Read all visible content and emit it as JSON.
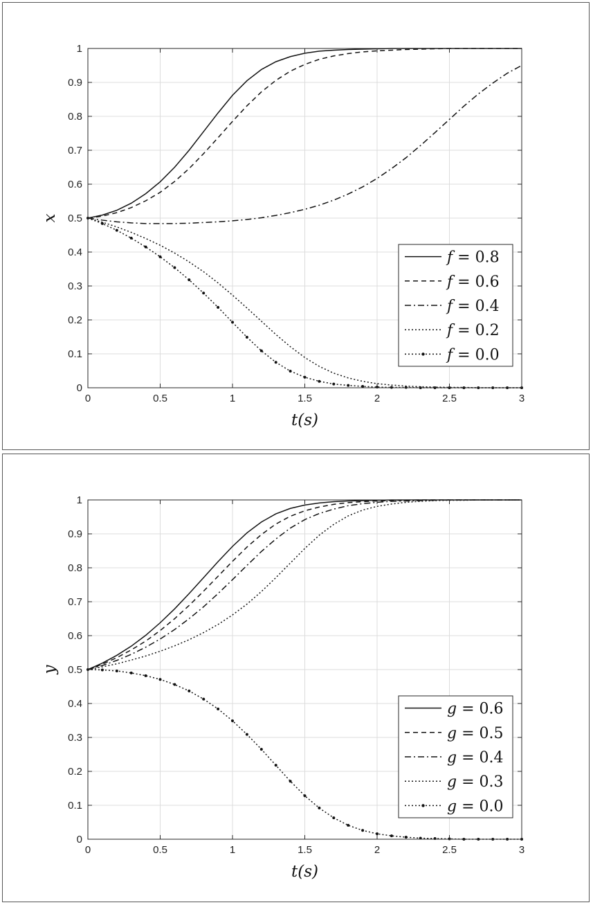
{
  "chart_data": [
    {
      "type": "line",
      "xlabel": "t(s)",
      "ylabel": "x",
      "xlim": [
        0,
        3
      ],
      "ylim": [
        0,
        1
      ],
      "xticks": [
        "0",
        "0.5",
        "1",
        "1.5",
        "2",
        "2.5",
        "3"
      ],
      "yticks": [
        "0",
        "0.1",
        "0.2",
        "0.3",
        "0.4",
        "0.5",
        "0.6",
        "0.7",
        "0.8",
        "0.9",
        "1"
      ],
      "grid": true,
      "legend_position": "lower-right",
      "x": [
        0,
        0.1,
        0.2,
        0.3,
        0.4,
        0.5,
        0.6,
        0.7,
        0.8,
        0.9,
        1.0,
        1.1,
        1.2,
        1.3,
        1.4,
        1.5,
        1.6,
        1.7,
        1.8,
        1.9,
        2.0,
        2.1,
        2.2,
        2.3,
        2.4,
        2.5,
        2.6,
        2.7,
        2.8,
        2.9,
        3.0
      ],
      "series": [
        {
          "name": "f = 0.8",
          "var": "f",
          "val": "0.8",
          "style": "solid",
          "values": [
            0.5,
            0.509,
            0.523,
            0.544,
            0.572,
            0.607,
            0.65,
            0.7,
            0.755,
            0.81,
            0.862,
            0.905,
            0.938,
            0.961,
            0.976,
            0.986,
            0.992,
            0.995,
            0.997,
            0.998,
            0.999,
            1.0,
            1.0,
            1.0,
            1.0,
            1.0,
            1.0,
            1.0,
            1.0,
            1.0,
            1.0
          ]
        },
        {
          "name": "f = 0.6",
          "var": "f",
          "val": "0.6",
          "style": "dashed",
          "values": [
            0.5,
            0.506,
            0.516,
            0.531,
            0.551,
            0.576,
            0.608,
            0.646,
            0.69,
            0.737,
            0.785,
            0.831,
            0.872,
            0.906,
            0.933,
            0.953,
            0.968,
            0.978,
            0.985,
            0.99,
            0.993,
            0.995,
            0.997,
            0.998,
            0.999,
            1.0,
            1.0,
            1.0,
            1.0,
            1.0,
            1.0
          ]
        },
        {
          "name": "f = 0.4",
          "var": "f",
          "val": "0.4",
          "style": "dashdot",
          "values": [
            0.5,
            0.494,
            0.489,
            0.486,
            0.484,
            0.484,
            0.484,
            0.485,
            0.487,
            0.489,
            0.492,
            0.496,
            0.501,
            0.508,
            0.516,
            0.526,
            0.538,
            0.553,
            0.571,
            0.592,
            0.617,
            0.646,
            0.678,
            0.714,
            0.752,
            0.791,
            0.83,
            0.866,
            0.898,
            0.927,
            0.95
          ]
        },
        {
          "name": "f = 0.2",
          "var": "f",
          "val": "0.2",
          "style": "dotted",
          "values": [
            0.5,
            0.488,
            0.474,
            0.458,
            0.44,
            0.42,
            0.397,
            0.371,
            0.342,
            0.309,
            0.273,
            0.235,
            0.196,
            0.157,
            0.121,
            0.089,
            0.063,
            0.043,
            0.029,
            0.019,
            0.012,
            0.008,
            0.005,
            0.003,
            0.002,
            0.001,
            0.001,
            0.0,
            0.0,
            0.0,
            0.0
          ]
        },
        {
          "name": "f = 0.0",
          "var": "f",
          "val": "0.0",
          "style": "dotted-marker",
          "values": [
            0.5,
            0.484,
            0.464,
            0.441,
            0.415,
            0.386,
            0.354,
            0.318,
            0.279,
            0.237,
            0.193,
            0.149,
            0.109,
            0.075,
            0.049,
            0.031,
            0.019,
            0.011,
            0.007,
            0.004,
            0.002,
            0.001,
            0.001,
            0.0,
            0.0,
            0.0,
            0.0,
            0.0,
            0.0,
            0.0,
            0.0
          ]
        }
      ]
    },
    {
      "type": "line",
      "xlabel": "t(s)",
      "ylabel": "y",
      "xlim": [
        0,
        3
      ],
      "ylim": [
        0,
        1
      ],
      "xticks": [
        "0",
        "0.5",
        "1",
        "1.5",
        "2",
        "2.5",
        "3"
      ],
      "yticks": [
        "0",
        "0.1",
        "0.2",
        "0.3",
        "0.4",
        "0.5",
        "0.6",
        "0.7",
        "0.8",
        "0.9",
        "1"
      ],
      "grid": true,
      "legend_position": "lower-right",
      "x": [
        0,
        0.1,
        0.2,
        0.3,
        0.4,
        0.5,
        0.6,
        0.7,
        0.8,
        0.9,
        1.0,
        1.1,
        1.2,
        1.3,
        1.4,
        1.5,
        1.6,
        1.7,
        1.8,
        1.9,
        2.0,
        2.1,
        2.2,
        2.3,
        2.4,
        2.5,
        2.6,
        2.7,
        2.8,
        2.9,
        3.0
      ],
      "series": [
        {
          "name": "g = 0.6",
          "var": "g",
          "val": "0.6",
          "style": "solid",
          "values": [
            0.5,
            0.519,
            0.542,
            0.569,
            0.601,
            0.638,
            0.679,
            0.724,
            0.771,
            0.818,
            0.863,
            0.903,
            0.935,
            0.959,
            0.975,
            0.985,
            0.991,
            0.995,
            0.997,
            0.998,
            0.999,
            1.0,
            1.0,
            1.0,
            1.0,
            1.0,
            1.0,
            1.0,
            1.0,
            1.0,
            1.0
          ]
        },
        {
          "name": "g = 0.5",
          "var": "g",
          "val": "0.5",
          "style": "dashed",
          "values": [
            0.5,
            0.516,
            0.535,
            0.558,
            0.584,
            0.615,
            0.65,
            0.689,
            0.731,
            0.775,
            0.819,
            0.861,
            0.898,
            0.929,
            0.952,
            0.968,
            0.979,
            0.987,
            0.992,
            0.995,
            0.997,
            0.998,
            0.999,
            1.0,
            1.0,
            1.0,
            1.0,
            1.0,
            1.0,
            1.0,
            1.0
          ]
        },
        {
          "name": "g = 0.4",
          "var": "g",
          "val": "0.4",
          "style": "dashdot",
          "values": [
            0.5,
            0.512,
            0.527,
            0.545,
            0.566,
            0.59,
            0.618,
            0.65,
            0.685,
            0.724,
            0.765,
            0.807,
            0.848,
            0.885,
            0.917,
            0.942,
            0.96,
            0.973,
            0.983,
            0.989,
            0.993,
            0.996,
            0.997,
            0.998,
            0.999,
            1.0,
            1.0,
            1.0,
            1.0,
            1.0,
            1.0
          ]
        },
        {
          "name": "g = 0.3",
          "var": "g",
          "val": "0.3",
          "style": "dotted",
          "values": [
            0.5,
            0.508,
            0.517,
            0.528,
            0.54,
            0.554,
            0.57,
            0.588,
            0.609,
            0.633,
            0.661,
            0.693,
            0.73,
            0.771,
            0.814,
            0.857,
            0.896,
            0.928,
            0.953,
            0.97,
            0.981,
            0.988,
            0.993,
            0.996,
            0.998,
            0.999,
            0.999,
            1.0,
            1.0,
            1.0,
            1.0
          ]
        },
        {
          "name": "g = 0.0",
          "var": "g",
          "val": "0.0",
          "style": "dotted-marker",
          "values": [
            0.5,
            0.499,
            0.496,
            0.49,
            0.482,
            0.471,
            0.456,
            0.437,
            0.413,
            0.384,
            0.349,
            0.309,
            0.265,
            0.218,
            0.171,
            0.128,
            0.092,
            0.063,
            0.041,
            0.026,
            0.016,
            0.01,
            0.006,
            0.003,
            0.002,
            0.001,
            0.0,
            0.0,
            0.0,
            0.0,
            0.0
          ]
        }
      ]
    }
  ]
}
